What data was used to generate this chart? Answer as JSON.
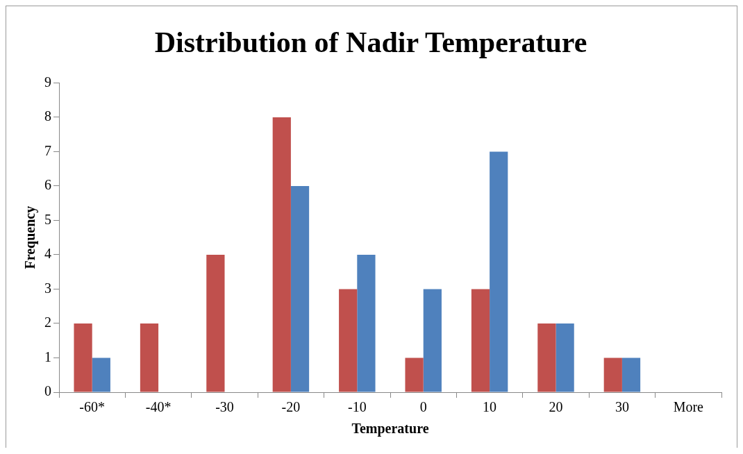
{
  "chart_data": {
    "type": "bar",
    "title": "Distribution of Nadir Temperature",
    "xlabel": "Temperature",
    "ylabel": "Frequency",
    "categories": [
      "-60*",
      "-40*",
      "-30",
      "-20",
      "-10",
      "0",
      "10",
      "20",
      "30",
      "More"
    ],
    "series": [
      {
        "color": "#c0504d",
        "values": [
          2,
          2,
          4,
          8,
          3,
          1,
          3,
          2,
          1,
          0
        ]
      },
      {
        "color": "#4f81bd",
        "values": [
          1,
          0,
          0,
          6,
          4,
          3,
          7,
          2,
          1,
          0
        ]
      }
    ],
    "ylim": [
      0,
      9
    ],
    "yticks": [
      0,
      1,
      2,
      3,
      4,
      5,
      6,
      7,
      8,
      9
    ],
    "grid": false,
    "legend": false
  }
}
